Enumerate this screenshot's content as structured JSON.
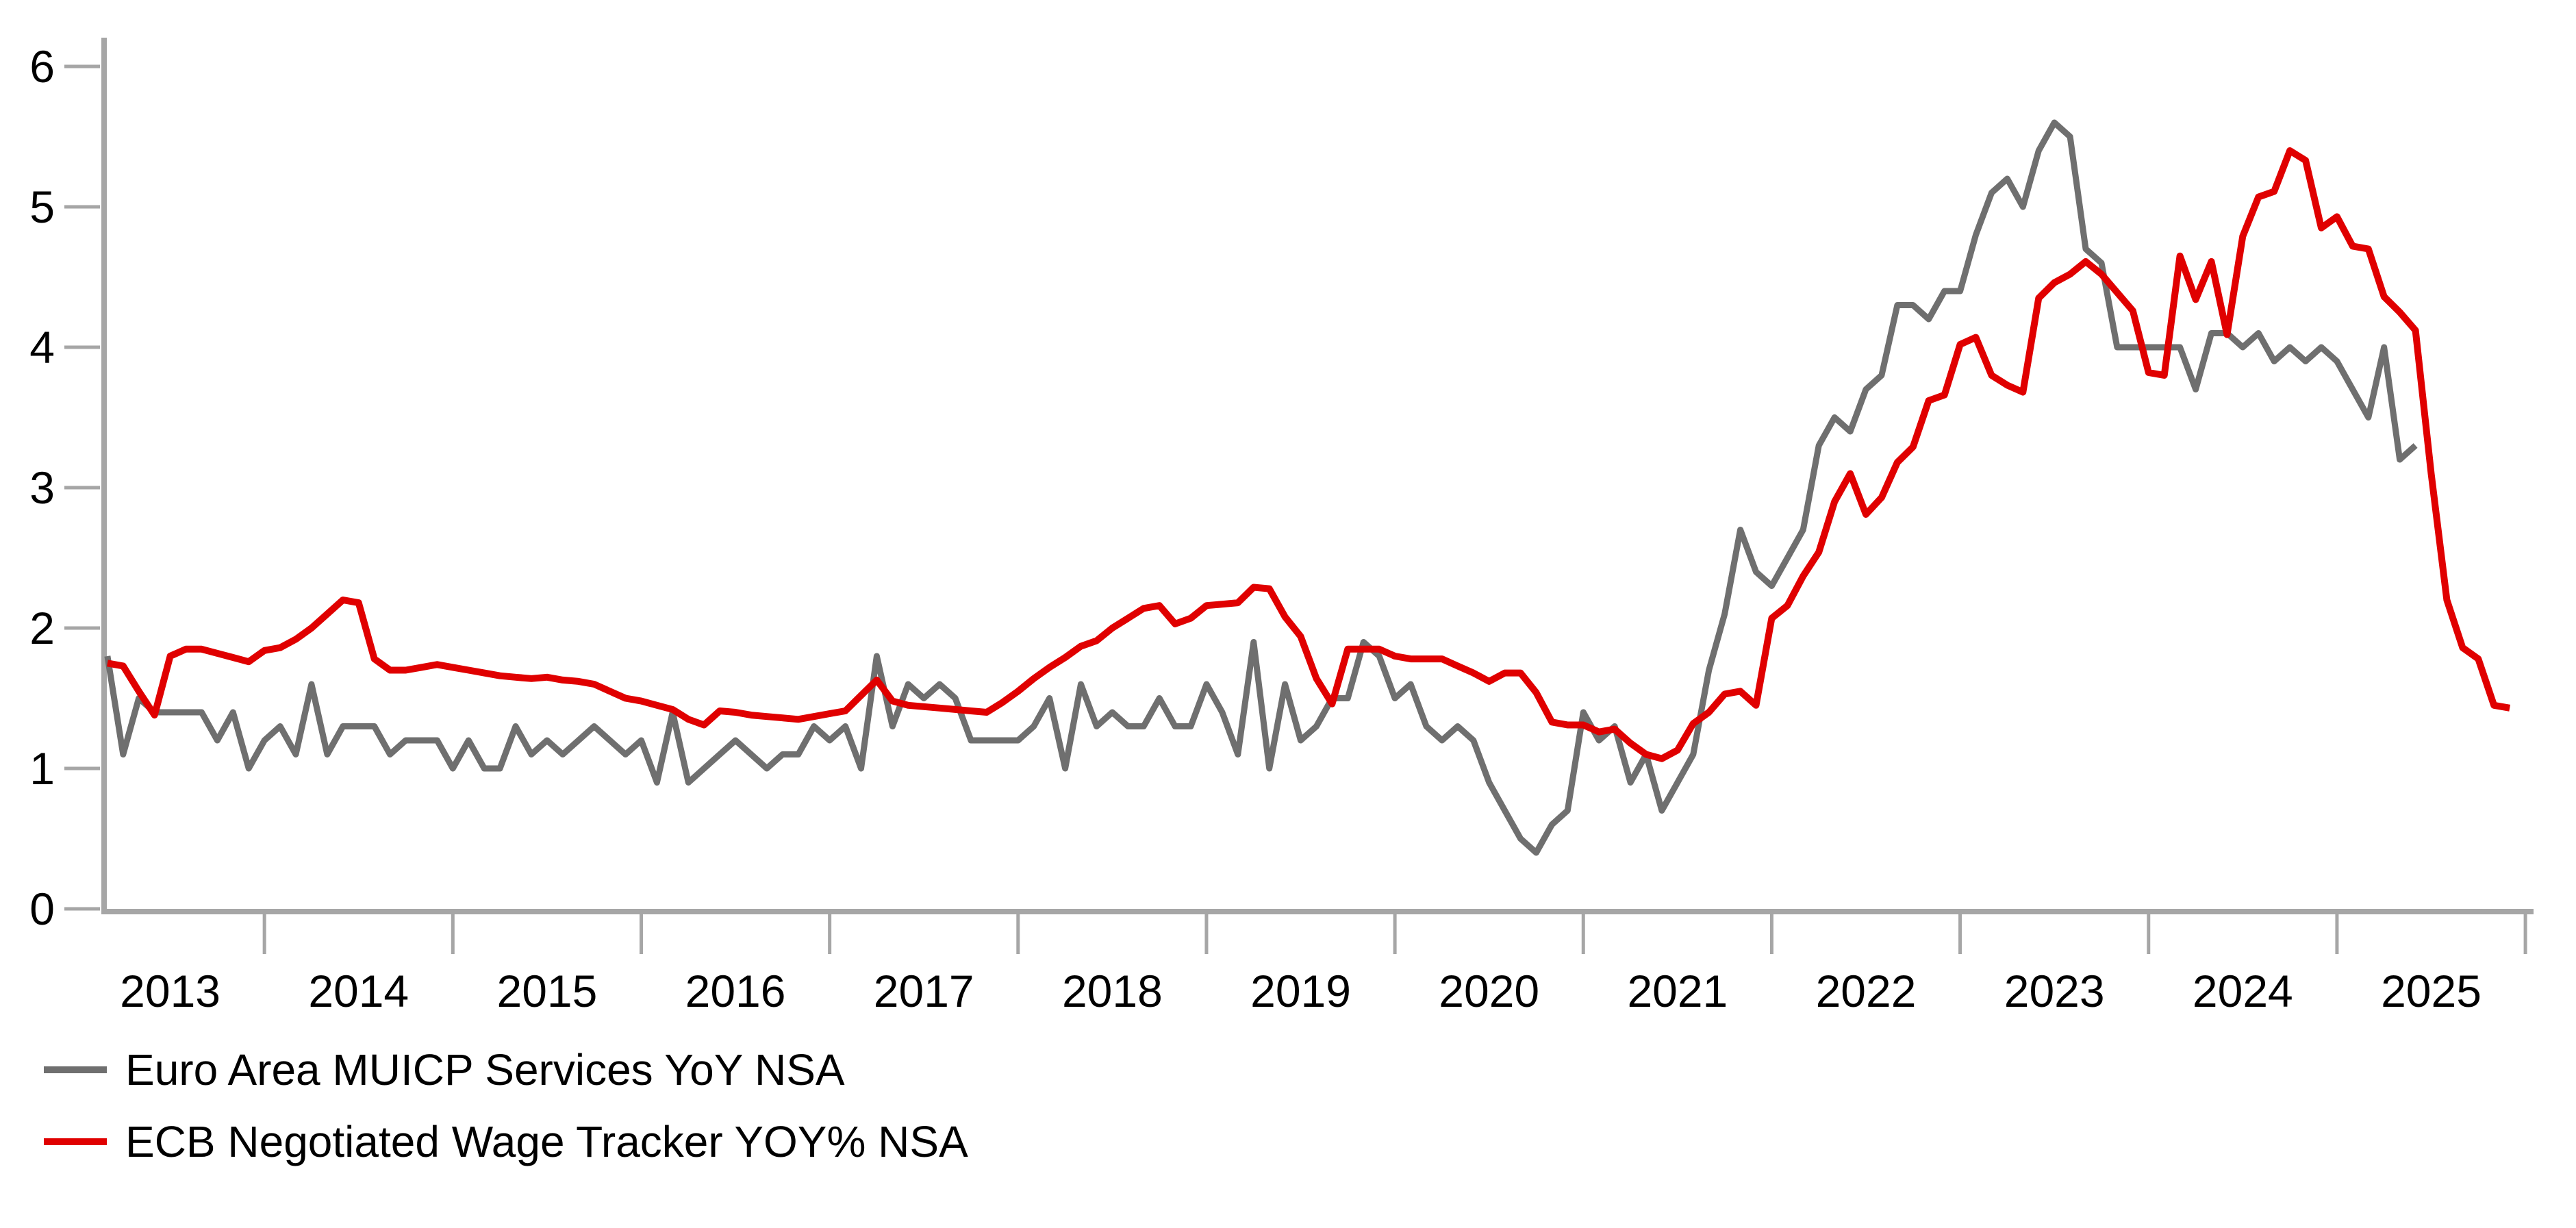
{
  "chart_data": {
    "type": "line",
    "title": "",
    "xlabel": "",
    "ylabel": "",
    "grid": false,
    "background": "#ffffff",
    "axis_color": "#a6a6a6",
    "tick_label_color": "#000000",
    "y_axis": {
      "min": 0,
      "max": 6,
      "ticks": [
        0,
        1,
        2,
        3,
        4,
        5,
        6
      ]
    },
    "x_axis": {
      "year_labels": [
        "2013",
        "2014",
        "2015",
        "2016",
        "2017",
        "2018",
        "2019",
        "2020",
        "2021",
        "2022",
        "2023",
        "2024",
        "2025"
      ],
      "boundary_tick_years": [
        2014,
        2015,
        2016,
        2017,
        2018,
        2019,
        2020,
        2021,
        2022,
        2023,
        2024,
        2025,
        2026
      ],
      "monthly_start": "2013-03"
    },
    "legend_position": "bottom-left",
    "series": [
      {
        "name": "Euro Area MUICP Services YoY NSA",
        "color": "#6f6f6f",
        "stroke_width": 9,
        "start_month": "2013-03",
        "values": [
          1.8,
          1.1,
          1.5,
          1.4,
          1.4,
          1.4,
          1.4,
          1.2,
          1.4,
          1.0,
          1.2,
          1.3,
          1.1,
          1.6,
          1.1,
          1.3,
          1.3,
          1.3,
          1.1,
          1.2,
          1.2,
          1.2,
          1.0,
          1.2,
          1.0,
          1.0,
          1.3,
          1.1,
          1.2,
          1.1,
          1.2,
          1.3,
          1.2,
          1.1,
          1.2,
          0.9,
          1.4,
          0.9,
          1.0,
          1.1,
          1.2,
          1.1,
          1.0,
          1.1,
          1.1,
          1.3,
          1.2,
          1.3,
          1.0,
          1.8,
          1.3,
          1.6,
          1.5,
          1.6,
          1.5,
          1.2,
          1.2,
          1.2,
          1.2,
          1.3,
          1.5,
          1.0,
          1.6,
          1.3,
          1.4,
          1.3,
          1.3,
          1.5,
          1.3,
          1.3,
          1.6,
          1.4,
          1.1,
          1.9,
          1.0,
          1.6,
          1.2,
          1.3,
          1.5,
          1.5,
          1.9,
          1.8,
          1.5,
          1.6,
          1.3,
          1.2,
          1.3,
          1.2,
          0.9,
          0.7,
          0.5,
          0.4,
          0.6,
          0.7,
          1.4,
          1.2,
          1.3,
          0.9,
          1.1,
          0.7,
          0.9,
          1.1,
          1.7,
          2.1,
          2.7,
          2.4,
          2.3,
          2.5,
          2.7,
          3.3,
          3.5,
          3.4,
          3.7,
          3.8,
          4.3,
          4.3,
          4.2,
          4.4,
          4.4,
          4.8,
          5.1,
          5.2,
          5.0,
          5.4,
          5.6,
          5.5,
          4.7,
          4.6,
          4.0,
          4.0,
          4.0,
          4.0,
          4.0,
          3.7,
          4.1,
          4.1,
          4.0,
          4.1,
          3.9,
          4.0,
          3.9,
          4.0,
          3.9,
          3.7,
          3.5,
          4.0,
          3.2,
          3.3
        ]
      },
      {
        "name": "ECB Negotiated Wage Tracker YOY% NSA",
        "color": "#e00000",
        "stroke_width": 10,
        "start_month": "2013-03",
        "values": [
          1.75,
          1.73,
          1.55,
          1.38,
          1.8,
          1.85,
          1.85,
          1.82,
          1.79,
          1.76,
          1.84,
          1.86,
          1.92,
          2.0,
          2.1,
          2.2,
          2.18,
          1.78,
          1.7,
          1.7,
          1.72,
          1.74,
          1.72,
          1.7,
          1.68,
          1.66,
          1.65,
          1.64,
          1.65,
          1.63,
          1.62,
          1.6,
          1.55,
          1.5,
          1.48,
          1.45,
          1.42,
          1.35,
          1.31,
          1.41,
          1.4,
          1.38,
          1.37,
          1.36,
          1.35,
          1.37,
          1.39,
          1.41,
          1.52,
          1.63,
          1.48,
          1.45,
          1.44,
          1.43,
          1.42,
          1.41,
          1.4,
          1.47,
          1.55,
          1.64,
          1.72,
          1.79,
          1.87,
          1.91,
          2.0,
          2.07,
          2.14,
          2.16,
          2.03,
          2.07,
          2.16,
          2.17,
          2.18,
          2.29,
          2.28,
          2.08,
          1.94,
          1.64,
          1.46,
          1.85,
          1.85,
          1.85,
          1.8,
          1.78,
          1.78,
          1.78,
          1.73,
          1.68,
          1.62,
          1.68,
          1.68,
          1.54,
          1.33,
          1.31,
          1.31,
          1.26,
          1.28,
          1.18,
          1.1,
          1.07,
          1.13,
          1.32,
          1.4,
          1.53,
          1.55,
          1.45,
          2.07,
          2.16,
          2.37,
          2.54,
          2.9,
          3.1,
          2.81,
          2.93,
          3.18,
          3.29,
          3.62,
          3.66,
          4.02,
          4.07,
          3.8,
          3.73,
          3.68,
          4.35,
          4.46,
          4.52,
          4.61,
          4.52,
          4.39,
          4.26,
          3.82,
          3.8,
          4.65,
          4.34,
          4.61,
          4.09,
          4.79,
          5.07,
          5.11,
          5.4,
          5.33,
          4.85,
          4.93,
          4.72,
          4.7,
          4.36,
          4.25,
          4.12,
          3.1,
          2.2,
          1.86,
          1.78,
          1.45,
          1.43
        ]
      }
    ]
  },
  "legend": {
    "items": [
      {
        "label": "Euro Area MUICP Services YoY NSA",
        "color": "#6f6f6f"
      },
      {
        "label": "ECB Negotiated Wage Tracker YOY% NSA",
        "color": "#e00000"
      }
    ]
  },
  "colors": {
    "background": "#ffffff",
    "axis": "#a6a6a6",
    "text": "#000000",
    "series_gray": "#6f6f6f",
    "series_red": "#e00000"
  }
}
